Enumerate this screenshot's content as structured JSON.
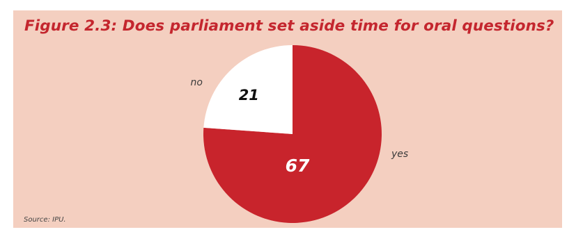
{
  "chart_data": {
    "type": "pie",
    "title": "Figure 2.3: Does parliament set aside time for oral questions?",
    "source": "Source: IPU.",
    "slices": [
      {
        "label": "yes",
        "value": 67,
        "color": "#c8242c",
        "value_label_color": "#ffffff"
      },
      {
        "label": "no",
        "value": 21,
        "color": "#ffffff",
        "value_label_color": "#111111"
      }
    ]
  },
  "colors": {
    "background": "#f4cfc0",
    "title": "#c4262e"
  }
}
